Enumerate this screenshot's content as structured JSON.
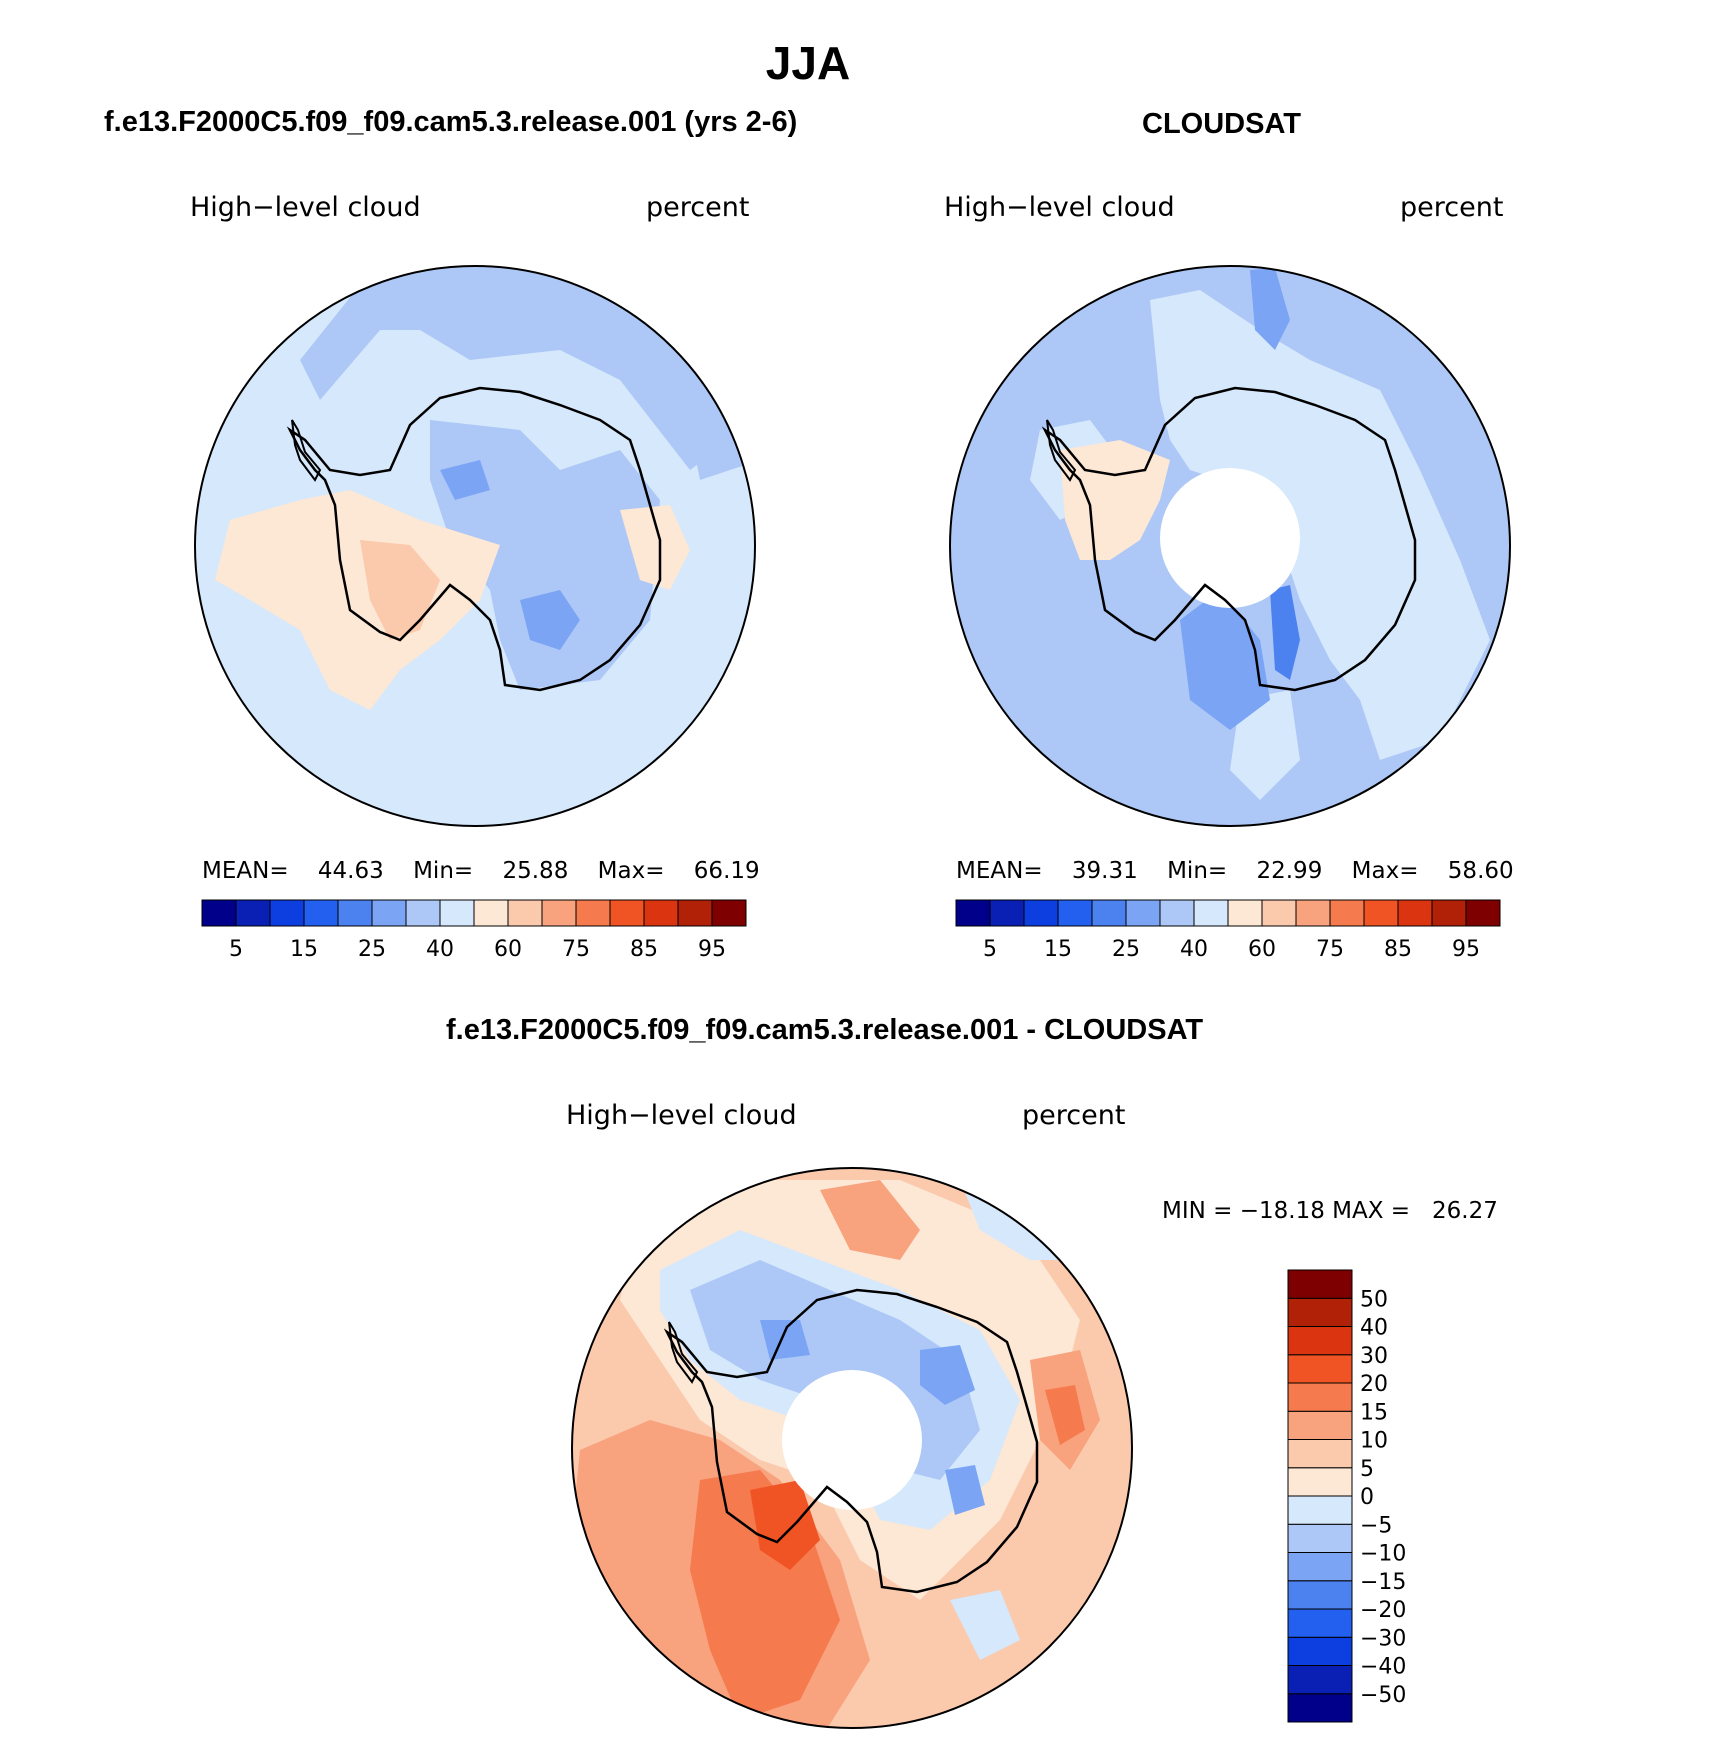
{
  "figure": {
    "title": "JJA",
    "panels": [
      {
        "header": "f.e13.F2000C5.f09_f09.cam5.3.release.001 (yrs 2-6)",
        "left_label": "High−level cloud",
        "right_label": "percent",
        "stats": {
          "mean_label": "MEAN=",
          "mean": "44.63",
          "min_label": "Min=",
          "min": "25.88",
          "max_label": "Max=",
          "max": "66.19"
        }
      },
      {
        "header": "CLOUDSAT",
        "left_label": "High−level cloud",
        "right_label": "percent",
        "stats": {
          "mean_label": "MEAN=",
          "mean": "39.31",
          "min_label": "Min=",
          "min": "22.99",
          "max_label": "Max=",
          "max": "58.60"
        }
      },
      {
        "header": "f.e13.F2000C5.f09_f09.cam5.3.release.001 - CLOUDSAT",
        "left_label": "High−level cloud",
        "right_label": "percent",
        "minmax": "MIN = −18.18 MAX =   26.27"
      }
    ]
  },
  "colorbars": {
    "abs_colors": [
      "#00008b",
      "#0a1fb4",
      "#0d3ee0",
      "#2460f0",
      "#4c81f0",
      "#7ba4f5",
      "#adc8f7",
      "#d6e8fb",
      "#fde7d5",
      "#fbc9ac",
      "#f8a27e",
      "#f57a4d",
      "#f15424",
      "#da3410",
      "#b12107",
      "#7f0000"
    ],
    "abs_ticks": [
      "5",
      "15",
      "25",
      "40",
      "60",
      "75",
      "85",
      "95"
    ],
    "diff_colors": [
      "#00008b",
      "#0a1fb4",
      "#0d3ee0",
      "#2460f0",
      "#4c81f0",
      "#7ba4f5",
      "#adc8f7",
      "#d6e8fb",
      "#fde7d5",
      "#fbc9ac",
      "#f8a27e",
      "#f57a4d",
      "#f15424",
      "#da3410",
      "#b12107",
      "#7f0000"
    ],
    "diff_ticks": [
      "−50",
      "−40",
      "−30",
      "−20",
      "−15",
      "−10",
      "−5",
      "0",
      "5",
      "10",
      "15",
      "20",
      "30",
      "40",
      "50"
    ]
  },
  "palette": {
    "lightblue": "#d6e8fb",
    "midblue": "#adc8f7",
    "blue": "#7ba4f5",
    "deepblue": "#4c81f0",
    "peach": "#fde7d5",
    "salmon": "#fbc9ac",
    "orange": "#f8a27e",
    "redorange": "#f57a4d",
    "red": "#f15424"
  }
}
